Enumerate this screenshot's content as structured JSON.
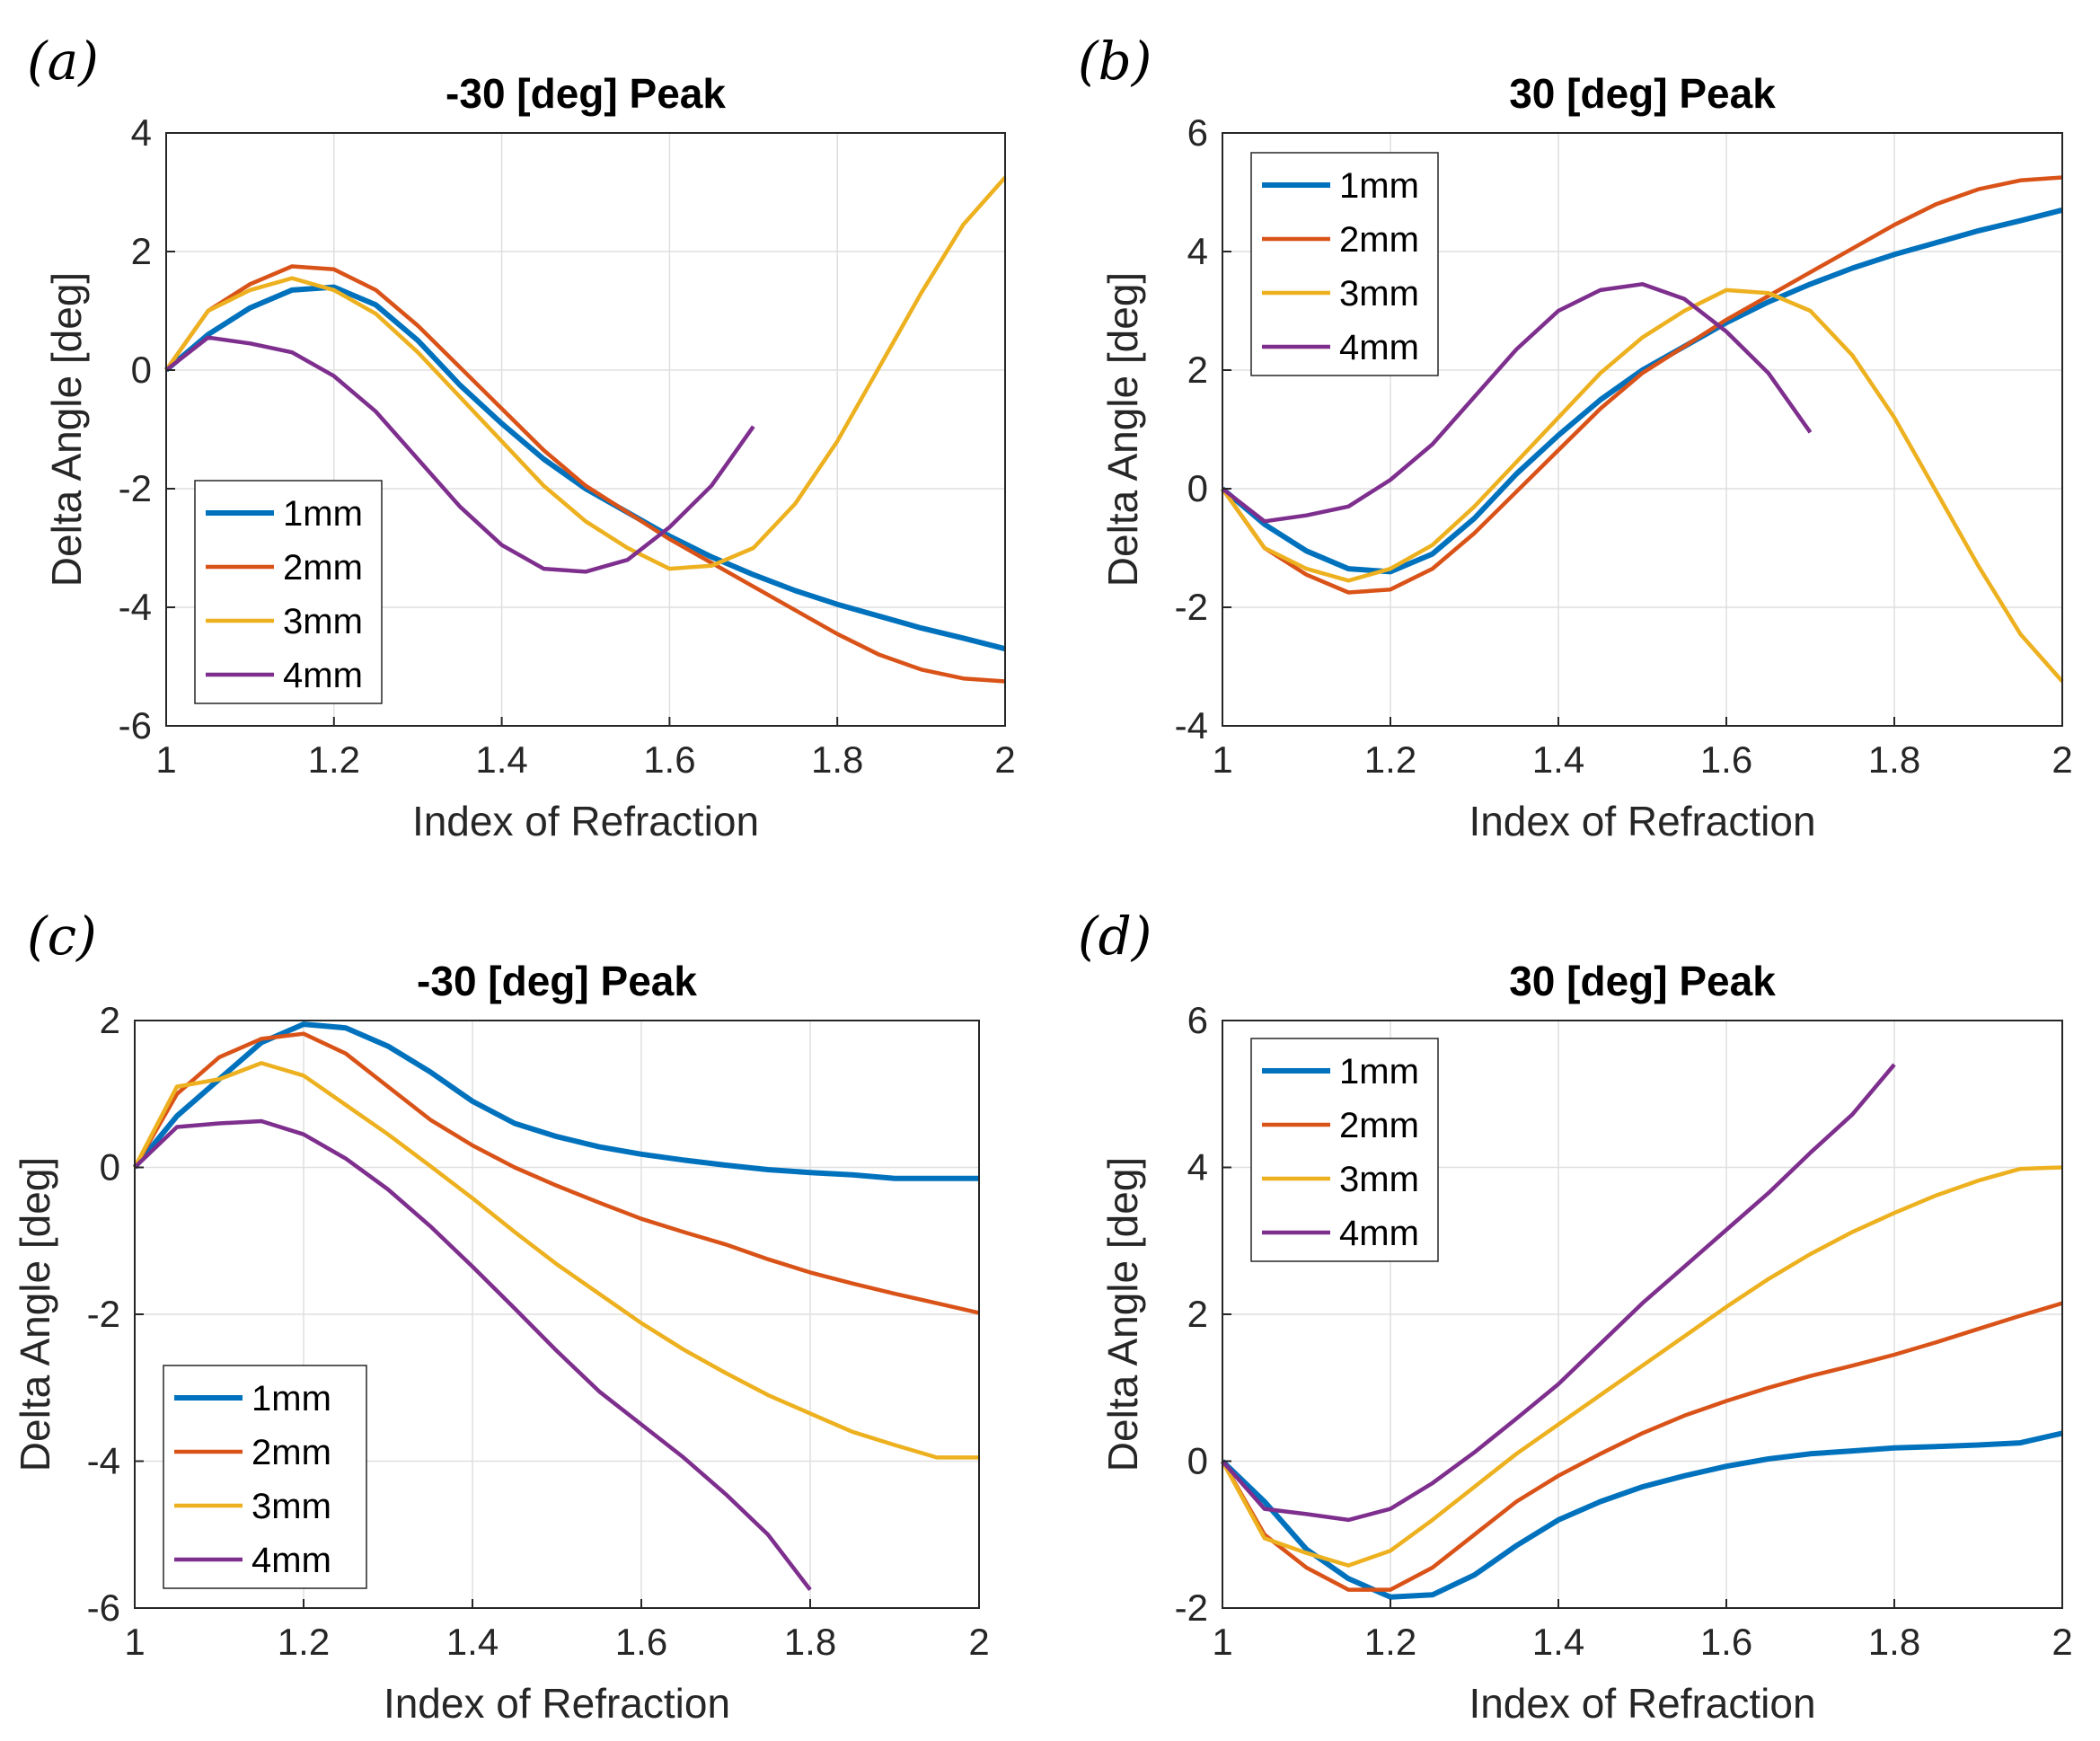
{
  "colors": {
    "series": [
      "#0072BD",
      "#D95319",
      "#EDB120",
      "#7E2F8E"
    ],
    "grid": "#dfdfdf",
    "axis": "#262626"
  },
  "chart_data": [
    {
      "type": "line",
      "panel_label": "(a)",
      "title": "-30 [deg] Peak",
      "xlabel": "Index of Refraction",
      "ylabel": "Delta Angle [deg]",
      "xlim": [
        1,
        2
      ],
      "ylim": [
        -6,
        4
      ],
      "xticks": [
        1,
        1.2,
        1.4,
        1.6,
        1.8,
        2
      ],
      "xtick_labels": [
        "1",
        "1.2",
        "1.4",
        "1.6",
        "1.8",
        "2"
      ],
      "yticks": [
        -6,
        -4,
        -2,
        0,
        2,
        4
      ],
      "ytick_labels": [
        "-6",
        "-4",
        "-2",
        "0",
        "2",
        "4"
      ],
      "legend_position": "lower-left",
      "series": [
        {
          "name": "1mm",
          "x": [
            1,
            1.05,
            1.1,
            1.15,
            1.2,
            1.25,
            1.3,
            1.35,
            1.4,
            1.45,
            1.5,
            1.55,
            1.6,
            1.65,
            1.7,
            1.75,
            1.8,
            1.85,
            1.9,
            1.95,
            2
          ],
          "y": [
            0,
            0.6,
            1.05,
            1.35,
            1.4,
            1.1,
            0.5,
            -0.25,
            -0.9,
            -1.5,
            -2.0,
            -2.4,
            -2.8,
            -3.15,
            -3.45,
            -3.72,
            -3.95,
            -4.15,
            -4.35,
            -4.52,
            -4.7
          ]
        },
        {
          "name": "2mm",
          "x": [
            1,
            1.05,
            1.1,
            1.15,
            1.2,
            1.25,
            1.3,
            1.35,
            1.4,
            1.45,
            1.5,
            1.55,
            1.6,
            1.65,
            1.7,
            1.75,
            1.8,
            1.85,
            1.9,
            1.95,
            2
          ],
          "y": [
            0,
            1.0,
            1.45,
            1.75,
            1.7,
            1.35,
            0.75,
            0.05,
            -0.65,
            -1.35,
            -1.95,
            -2.4,
            -2.85,
            -3.25,
            -3.65,
            -4.05,
            -4.45,
            -4.8,
            -5.05,
            -5.2,
            -5.25
          ]
        },
        {
          "name": "3mm",
          "x": [
            1,
            1.05,
            1.1,
            1.15,
            1.2,
            1.25,
            1.3,
            1.35,
            1.4,
            1.45,
            1.5,
            1.55,
            1.6,
            1.65,
            1.7,
            1.75,
            1.8,
            1.85,
            1.9,
            1.95,
            2
          ],
          "y": [
            0,
            1.0,
            1.35,
            1.55,
            1.35,
            0.95,
            0.3,
            -0.45,
            -1.2,
            -1.95,
            -2.55,
            -3.0,
            -3.35,
            -3.3,
            -3.0,
            -2.25,
            -1.2,
            0.05,
            1.3,
            2.45,
            3.25
          ]
        },
        {
          "name": "4mm",
          "x": [
            1,
            1.05,
            1.1,
            1.15,
            1.2,
            1.25,
            1.3,
            1.35,
            1.4,
            1.45,
            1.5,
            1.55,
            1.6,
            1.65,
            1.7
          ],
          "y": [
            0,
            0.55,
            0.45,
            0.3,
            -0.1,
            -0.7,
            -1.5,
            -2.3,
            -2.95,
            -3.35,
            -3.4,
            -3.2,
            -2.65,
            -1.95,
            -0.95
          ]
        }
      ]
    },
    {
      "type": "line",
      "panel_label": "(b)",
      "title": "30 [deg] Peak",
      "xlabel": "Index of Refraction",
      "ylabel": "Delta Angle [deg]",
      "xlim": [
        1,
        2
      ],
      "ylim": [
        -4,
        6
      ],
      "xticks": [
        1,
        1.2,
        1.4,
        1.6,
        1.8,
        2
      ],
      "xtick_labels": [
        "1",
        "1.2",
        "1.4",
        "1.6",
        "1.8",
        "2"
      ],
      "yticks": [
        -4,
        -2,
        0,
        2,
        4,
        6
      ],
      "ytick_labels": [
        "-4",
        "-2",
        "0",
        "2",
        "4",
        "6"
      ],
      "legend_position": "upper-left",
      "series": [
        {
          "name": "1mm",
          "x": [
            1,
            1.05,
            1.1,
            1.15,
            1.2,
            1.25,
            1.3,
            1.35,
            1.4,
            1.45,
            1.5,
            1.55,
            1.6,
            1.65,
            1.7,
            1.75,
            1.8,
            1.85,
            1.9,
            1.95,
            2
          ],
          "y": [
            0,
            -0.6,
            -1.05,
            -1.35,
            -1.4,
            -1.1,
            -0.5,
            0.25,
            0.9,
            1.5,
            2.0,
            2.4,
            2.8,
            3.15,
            3.45,
            3.72,
            3.95,
            4.15,
            4.35,
            4.52,
            4.7
          ]
        },
        {
          "name": "2mm",
          "x": [
            1,
            1.05,
            1.1,
            1.15,
            1.2,
            1.25,
            1.3,
            1.35,
            1.4,
            1.45,
            1.5,
            1.55,
            1.6,
            1.65,
            1.7,
            1.75,
            1.8,
            1.85,
            1.9,
            1.95,
            2
          ],
          "y": [
            0,
            -1.0,
            -1.45,
            -1.75,
            -1.7,
            -1.35,
            -0.75,
            -0.05,
            0.65,
            1.35,
            1.95,
            2.4,
            2.85,
            3.25,
            3.65,
            4.05,
            4.45,
            4.8,
            5.05,
            5.2,
            5.25
          ]
        },
        {
          "name": "3mm",
          "x": [
            1,
            1.05,
            1.1,
            1.15,
            1.2,
            1.25,
            1.3,
            1.35,
            1.4,
            1.45,
            1.5,
            1.55,
            1.6,
            1.65,
            1.7,
            1.75,
            1.8,
            1.85,
            1.9,
            1.95,
            2
          ],
          "y": [
            0,
            -1.0,
            -1.35,
            -1.55,
            -1.35,
            -0.95,
            -0.3,
            0.45,
            1.2,
            1.95,
            2.55,
            3.0,
            3.35,
            3.3,
            3.0,
            2.25,
            1.2,
            -0.05,
            -1.3,
            -2.45,
            -3.25
          ]
        },
        {
          "name": "4mm",
          "x": [
            1,
            1.05,
            1.1,
            1.15,
            1.2,
            1.25,
            1.3,
            1.35,
            1.4,
            1.45,
            1.5,
            1.55,
            1.6,
            1.65,
            1.7
          ],
          "y": [
            0,
            -0.55,
            -0.45,
            -0.3,
            0.15,
            0.75,
            1.55,
            2.35,
            3.0,
            3.35,
            3.45,
            3.2,
            2.65,
            1.95,
            0.95
          ]
        }
      ]
    },
    {
      "type": "line",
      "panel_label": "(c)",
      "title": "-30 [deg] Peak",
      "xlabel": "Index of Refraction",
      "ylabel": "Delta Angle [deg]",
      "xlim": [
        1,
        2
      ],
      "ylim": [
        -6,
        2
      ],
      "xticks": [
        1,
        1.2,
        1.4,
        1.6,
        1.8,
        2
      ],
      "xtick_labels": [
        "1",
        "1.2",
        "1.4",
        "1.6",
        "1.8",
        "2"
      ],
      "yticks": [
        -6,
        -4,
        -2,
        0,
        2
      ],
      "ytick_labels": [
        "-6",
        "-4",
        "-2",
        "0",
        "2"
      ],
      "legend_position": "lower-left",
      "series": [
        {
          "name": "1mm",
          "x": [
            1,
            1.05,
            1.1,
            1.15,
            1.2,
            1.25,
            1.3,
            1.35,
            1.4,
            1.45,
            1.5,
            1.55,
            1.6,
            1.65,
            1.7,
            1.75,
            1.8,
            1.85,
            1.9,
            1.95,
            2
          ],
          "y": [
            0,
            0.7,
            1.2,
            1.7,
            1.95,
            1.9,
            1.65,
            1.3,
            0.9,
            0.6,
            0.42,
            0.28,
            0.18,
            0.1,
            0.03,
            -0.03,
            -0.07,
            -0.1,
            -0.15,
            -0.15,
            -0.15
          ]
        },
        {
          "name": "2mm",
          "x": [
            1,
            1.05,
            1.1,
            1.15,
            1.2,
            1.25,
            1.3,
            1.35,
            1.4,
            1.45,
            1.5,
            1.55,
            1.6,
            1.65,
            1.7,
            1.75,
            1.8,
            1.85,
            1.9,
            1.95,
            2
          ],
          "y": [
            0,
            1.0,
            1.5,
            1.75,
            1.82,
            1.55,
            1.1,
            0.65,
            0.3,
            0.0,
            -0.25,
            -0.48,
            -0.7,
            -0.88,
            -1.05,
            -1.25,
            -1.43,
            -1.58,
            -1.72,
            -1.85,
            -1.98
          ]
        },
        {
          "name": "3mm",
          "x": [
            1,
            1.05,
            1.1,
            1.15,
            1.2,
            1.25,
            1.3,
            1.35,
            1.4,
            1.45,
            1.5,
            1.55,
            1.6,
            1.65,
            1.7,
            1.75,
            1.8,
            1.85,
            1.9,
            1.95,
            2
          ],
          "y": [
            0,
            1.1,
            1.2,
            1.42,
            1.25,
            0.85,
            0.45,
            0.02,
            -0.42,
            -0.88,
            -1.32,
            -1.72,
            -2.12,
            -2.48,
            -2.8,
            -3.1,
            -3.35,
            -3.6,
            -3.78,
            -3.95,
            -3.95
          ]
        },
        {
          "name": "4mm",
          "x": [
            1,
            1.05,
            1.1,
            1.15,
            1.2,
            1.25,
            1.3,
            1.35,
            1.4,
            1.45,
            1.5,
            1.55,
            1.6,
            1.65,
            1.7,
            1.75,
            1.8
          ],
          "y": [
            0,
            0.55,
            0.6,
            0.63,
            0.45,
            0.12,
            -0.3,
            -0.8,
            -1.35,
            -1.92,
            -2.5,
            -3.05,
            -3.5,
            -3.95,
            -4.45,
            -5.0,
            -5.75
          ]
        }
      ]
    },
    {
      "type": "line",
      "panel_label": "(d)",
      "title": "30 [deg] Peak",
      "xlabel": "Index of Refraction",
      "ylabel": "Delta Angle [deg]",
      "xlim": [
        1,
        2
      ],
      "ylim": [
        -2,
        6
      ],
      "xticks": [
        1,
        1.2,
        1.4,
        1.6,
        1.8,
        2
      ],
      "xtick_labels": [
        "1",
        "1.2",
        "1.4",
        "1.6",
        "1.8",
        "2"
      ],
      "yticks": [
        -2,
        0,
        2,
        4,
        6
      ],
      "ytick_labels": [
        "-2",
        "0",
        "2",
        "4",
        "6"
      ],
      "legend_position": "upper-left",
      "series": [
        {
          "name": "1mm",
          "x": [
            1,
            1.05,
            1.1,
            1.15,
            1.2,
            1.25,
            1.3,
            1.35,
            1.4,
            1.45,
            1.5,
            1.55,
            1.6,
            1.65,
            1.7,
            1.75,
            1.8,
            1.85,
            1.9,
            1.95,
            2
          ],
          "y": [
            0,
            -0.55,
            -1.2,
            -1.6,
            -1.85,
            -1.82,
            -1.55,
            -1.15,
            -0.8,
            -0.55,
            -0.35,
            -0.2,
            -0.07,
            0.03,
            0.1,
            0.14,
            0.18,
            0.2,
            0.22,
            0.25,
            0.38
          ]
        },
        {
          "name": "2mm",
          "x": [
            1,
            1.05,
            1.1,
            1.15,
            1.2,
            1.25,
            1.3,
            1.35,
            1.4,
            1.45,
            1.5,
            1.55,
            1.6,
            1.65,
            1.7,
            1.75,
            1.8,
            1.85,
            1.9,
            1.95,
            2
          ],
          "y": [
            0,
            -1.0,
            -1.45,
            -1.75,
            -1.75,
            -1.45,
            -1.0,
            -0.55,
            -0.2,
            0.1,
            0.38,
            0.62,
            0.82,
            1.0,
            1.16,
            1.3,
            1.45,
            1.62,
            1.8,
            1.98,
            2.15
          ]
        },
        {
          "name": "3mm",
          "x": [
            1,
            1.05,
            1.1,
            1.15,
            1.2,
            1.25,
            1.3,
            1.35,
            1.4,
            1.45,
            1.5,
            1.55,
            1.6,
            1.65,
            1.7,
            1.75,
            1.8,
            1.85,
            1.9,
            1.95,
            2
          ],
          "y": [
            0,
            -1.05,
            -1.25,
            -1.42,
            -1.22,
            -0.8,
            -0.35,
            0.1,
            0.5,
            0.9,
            1.3,
            1.7,
            2.1,
            2.48,
            2.82,
            3.12,
            3.38,
            3.62,
            3.82,
            3.98,
            4.0
          ]
        },
        {
          "name": "4mm",
          "x": [
            1,
            1.05,
            1.1,
            1.15,
            1.2,
            1.25,
            1.3,
            1.35,
            1.4,
            1.45,
            1.5,
            1.55,
            1.6,
            1.65,
            1.7,
            1.75,
            1.8
          ],
          "y": [
            0,
            -0.65,
            -0.72,
            -0.8,
            -0.65,
            -0.3,
            0.12,
            0.58,
            1.05,
            1.6,
            2.15,
            2.65,
            3.15,
            3.65,
            4.2,
            4.72,
            5.4
          ]
        }
      ]
    }
  ]
}
